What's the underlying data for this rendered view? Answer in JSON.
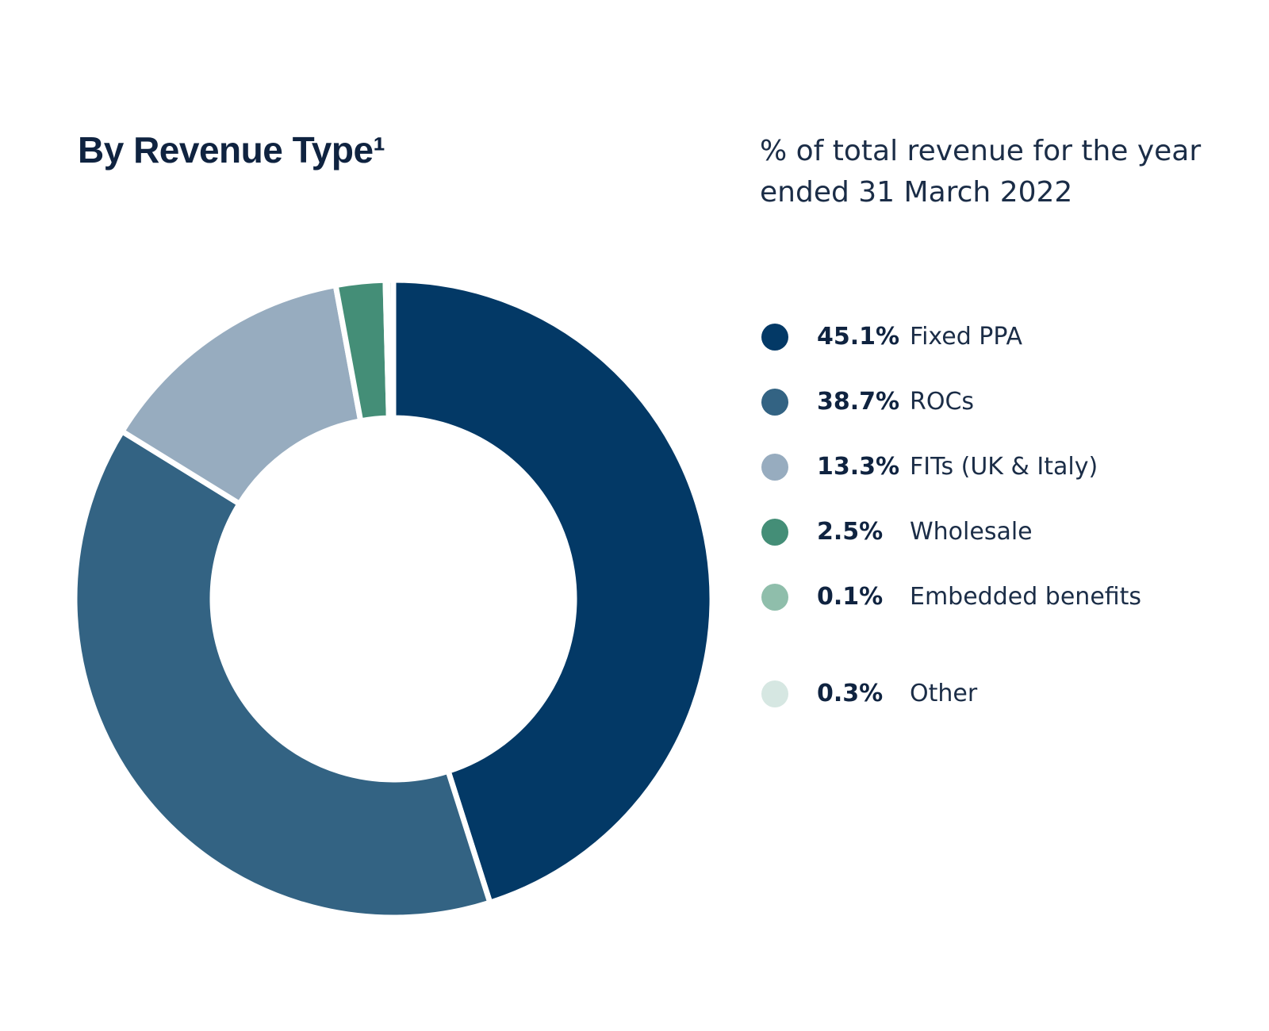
{
  "title": "By Revenue Type¹",
  "subtitle": "% of total revenue for the year ended 31 March 2022",
  "colors": {
    "background": "#ffffff",
    "text": "#0f2340",
    "separator": "#ffffff"
  },
  "chart_data": {
    "type": "pie",
    "variant": "donut",
    "title": "By Revenue Type¹",
    "subtitle": "% of total revenue for the year ended 31 March 2022",
    "legend_position": "right",
    "slices": [
      {
        "label": "Fixed PPA",
        "value": 45.1,
        "display": "45.1%",
        "color": "#033966"
      },
      {
        "label": "ROCs",
        "value": 38.7,
        "display": "38.7%",
        "color": "#336383"
      },
      {
        "label": "FITs (UK & Italy)",
        "value": 13.3,
        "display": "13.3%",
        "color": "#97acbf"
      },
      {
        "label": "Wholesale",
        "value": 2.5,
        "display": "2.5%",
        "color": "#448e77"
      },
      {
        "label": "Embedded benefits",
        "value": 0.1,
        "display": "0.1%",
        "color": "#8fbeab"
      },
      {
        "label": "Other",
        "value": 0.3,
        "display": "0.3%",
        "color": "#d6e7e2"
      }
    ]
  }
}
